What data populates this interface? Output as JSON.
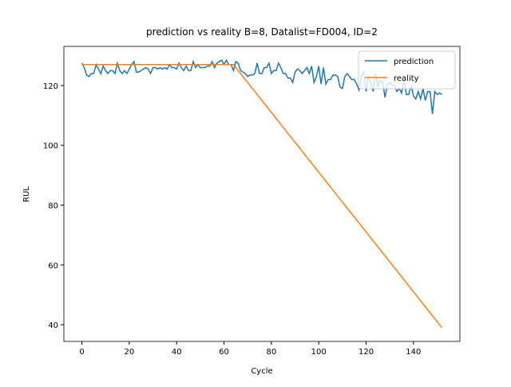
{
  "chart_data": {
    "type": "line",
    "title": "prediction vs reality B=8, Datalist=FD004, ID=2",
    "x_label": "Cycle",
    "y_label": "RUL",
    "x": [
      0,
      1,
      2,
      3,
      4,
      5,
      6,
      7,
      8,
      9,
      10,
      11,
      12,
      13,
      14,
      15,
      16,
      17,
      18,
      19,
      20,
      21,
      22,
      23,
      24,
      25,
      26,
      27,
      28,
      29,
      30,
      31,
      32,
      33,
      34,
      35,
      36,
      37,
      38,
      39,
      40,
      41,
      42,
      43,
      44,
      45,
      46,
      47,
      48,
      49,
      50,
      51,
      52,
      53,
      54,
      55,
      56,
      57,
      58,
      59,
      60,
      61,
      62,
      63,
      64,
      65,
      66,
      67,
      68,
      69,
      70,
      71,
      72,
      73,
      74,
      75,
      76,
      77,
      78,
      79,
      80,
      81,
      82,
      83,
      84,
      85,
      86,
      87,
      88,
      89,
      90,
      91,
      92,
      93,
      94,
      95,
      96,
      97,
      98,
      99,
      100,
      101,
      102,
      103,
      104,
      105,
      106,
      107,
      108,
      109,
      110,
      111,
      112,
      113,
      114,
      115,
      116,
      117,
      118,
      119,
      120,
      121,
      122,
      123,
      124,
      125,
      126,
      127,
      128,
      129,
      130,
      131,
      132,
      133,
      134,
      135,
      136,
      137,
      138,
      139,
      140,
      141,
      142,
      143,
      144,
      145,
      146,
      147,
      148,
      149,
      150,
      151,
      152
    ],
    "series": [
      {
        "name": "prediction",
        "color": "#1f77b4",
        "values": [
          127.5,
          126,
          123.5,
          123,
          124,
          124,
          127,
          125.5,
          124,
          126.5,
          125,
          124,
          125,
          125,
          124,
          127.5,
          125,
          124,
          125,
          124,
          125.5,
          127,
          128,
          124.5,
          124.5,
          125,
          125.5,
          126,
          125.5,
          124,
          126,
          126,
          125.5,
          126,
          125.5,
          126,
          125.5,
          127,
          126,
          126,
          125.5,
          127.5,
          126,
          125,
          126.5,
          125,
          125,
          128,
          126,
          127,
          126,
          126,
          126,
          126.5,
          126.5,
          128,
          126,
          127.5,
          128,
          128.5,
          127,
          128.5,
          127,
          127,
          125,
          128,
          127.5,
          125,
          124.5,
          124,
          123,
          123.5,
          123.5,
          124,
          127.5,
          124,
          124,
          126,
          126,
          127.5,
          124,
          125,
          125,
          127.5,
          126,
          124,
          124,
          122.5,
          122.5,
          121,
          124.5,
          125.5,
          125,
          124,
          125,
          126,
          124,
          126.5,
          121,
          123,
          126.5,
          120.5,
          126,
          120.5,
          122,
          122,
          123.5,
          123.5,
          123,
          119.5,
          119,
          123,
          124,
          123,
          122,
          122,
          120.5,
          118.5,
          123,
          124.5,
          118,
          123,
          121,
          118,
          124,
          119.5,
          122,
          121,
          116,
          120.5,
          121,
          120,
          120,
          118,
          119,
          117.5,
          122,
          117,
          117,
          120,
          116.5,
          115.5,
          118,
          115.5,
          119,
          115,
          118,
          118,
          110.5,
          118,
          117,
          117.5,
          117
        ]
      },
      {
        "name": "reality",
        "color": "#ff7f0e",
        "values": [
          127,
          127,
          127,
          127,
          127,
          127,
          127,
          127,
          127,
          127,
          127,
          127,
          127,
          127,
          127,
          127,
          127,
          127,
          127,
          127,
          127,
          127,
          127,
          127,
          127,
          127,
          127,
          127,
          127,
          127,
          127,
          127,
          127,
          127,
          127,
          127,
          127,
          127,
          127,
          127,
          127,
          127,
          127,
          127,
          127,
          127,
          127,
          127,
          127,
          127,
          127,
          127,
          127,
          127,
          127,
          127,
          127,
          127,
          127,
          127,
          127,
          127,
          127,
          127,
          127,
          126,
          125,
          124,
          123,
          122,
          121,
          120,
          119,
          118,
          117,
          116,
          115,
          114,
          113,
          112,
          111,
          110,
          109,
          108,
          107,
          106,
          105,
          104,
          103,
          102,
          101,
          100,
          99,
          98,
          97,
          96,
          95,
          94,
          93,
          92,
          91,
          90,
          89,
          88,
          87,
          86,
          85,
          84,
          83,
          82,
          81,
          80,
          79,
          78,
          77,
          76,
          75,
          74,
          73,
          72,
          71,
          70,
          69,
          68,
          67,
          66,
          65,
          64,
          63,
          62,
          61,
          60,
          59,
          58,
          57,
          56,
          55,
          54,
          53,
          52,
          51,
          50,
          49,
          48,
          47,
          46,
          45,
          44,
          43,
          42,
          41,
          40,
          39
        ]
      }
    ],
    "xlim": [
      -7.6,
      159.6
    ],
    "ylim": [
      34.4,
      133.1
    ],
    "xticks": [
      0,
      20,
      40,
      60,
      80,
      100,
      120,
      140
    ],
    "yticks": [
      40,
      60,
      80,
      100,
      120
    ],
    "grid": false,
    "legend": "upper right"
  }
}
